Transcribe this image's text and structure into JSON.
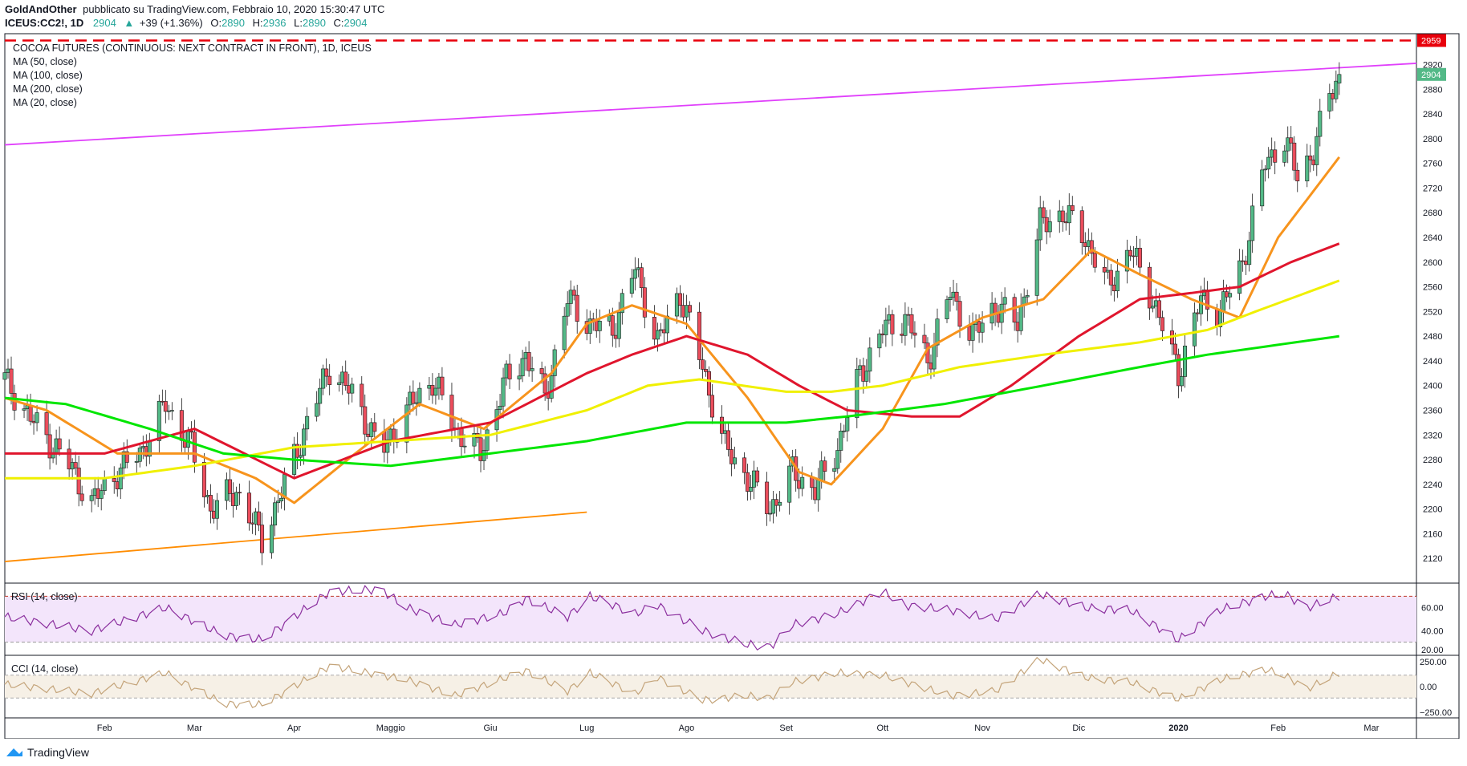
{
  "header": {
    "line1_user": "GoldAndOther",
    "line1_rest": "pubblicato su TradingView.com, Febbraio 10, 2020 15:30:47 UTC",
    "symbol": "ICEUS:CC2!, 1D",
    "last": "2904",
    "change": "+39 (+1.36%)",
    "o_label": "O:",
    "o_val": "2890",
    "h_label": "H:",
    "h_val": "2936",
    "l_label": "L:",
    "l_val": "2890",
    "c_label": "C:",
    "c_val": "2904"
  },
  "legend": {
    "title": "COCOA FUTURES (CONTINUOUS: NEXT CONTRACT IN FRONT), 1D, ICEUS",
    "ma50": "MA (50, close)",
    "ma100": "MA (100, close)",
    "ma200": "MA (200, close)",
    "ma20": "MA (20, close)"
  },
  "rsi_label": "RSI (14, close)",
  "cci_label": "CCI (14, close)",
  "footer_brand": "TradingView",
  "colors": {
    "up": "#53b987",
    "down": "#eb4d5c",
    "ma50": "#e0152d",
    "ma100": "#f0f000",
    "ma200": "#00e600",
    "ma20": "#f7941d",
    "trend_magenta": "#e040fb",
    "trend_orange": "#ff8c00",
    "resistance": "#e8000b",
    "rsi_line": "#8b2f9e",
    "rsi_band": "#f3e5fb",
    "cci_line": "#c4a47a",
    "cci_band": "#f6f0e6"
  },
  "chart_data": {
    "type": "candlestick",
    "x_ticks": [
      "Feb",
      "Mar",
      "Apr",
      "Maggio",
      "Giu",
      "Lug",
      "Ago",
      "Set",
      "Ott",
      "Nov",
      "Dic",
      "2020",
      "Feb",
      "Mar"
    ],
    "price_axis": {
      "ylim": [
        2080,
        2970
      ],
      "ticks": [
        "2920",
        "2880",
        "2840",
        "2800",
        "2760",
        "2720",
        "2680",
        "2640",
        "2600",
        "2560",
        "2520",
        "2480",
        "2440",
        "2400",
        "2360",
        "2320",
        "2280",
        "2240",
        "2200",
        "2160",
        "2120"
      ],
      "labels": [
        {
          "text": "2959",
          "kind": "resistance"
        },
        {
          "text": "2904",
          "kind": "last"
        }
      ]
    },
    "resistance": 2959,
    "trendlines": [
      {
        "name": "magenta",
        "points": [
          [
            "2019-01-01",
            2790
          ],
          [
            "2020-03-15",
            2922
          ]
        ]
      },
      {
        "name": "orange",
        "points": [
          [
            "2019-01-01",
            2115
          ],
          [
            "2019-07-01",
            2195
          ]
        ]
      }
    ],
    "candle_anchors": [
      [
        "2019-01-01",
        2410
      ],
      [
        "2019-01-10",
        2340
      ],
      [
        "2019-01-20",
        2280
      ],
      [
        "2019-01-28",
        2210
      ],
      [
        "2019-02-05",
        2260
      ],
      [
        "2019-02-12",
        2290
      ],
      [
        "2019-02-20",
        2370
      ],
      [
        "2019-02-28",
        2300
      ],
      [
        "2019-03-06",
        2200
      ],
      [
        "2019-03-14",
        2230
      ],
      [
        "2019-03-22",
        2150
      ],
      [
        "2019-03-29",
        2240
      ],
      [
        "2019-04-05",
        2340
      ],
      [
        "2019-04-12",
        2430
      ],
      [
        "2019-04-20",
        2380
      ],
      [
        "2019-04-28",
        2290
      ],
      [
        "2019-05-06",
        2360
      ],
      [
        "2019-05-14",
        2410
      ],
      [
        "2019-05-21",
        2330
      ],
      [
        "2019-05-29",
        2290
      ],
      [
        "2019-06-05",
        2400
      ],
      [
        "2019-06-12",
        2450
      ],
      [
        "2019-06-18",
        2380
      ],
      [
        "2019-06-25",
        2540
      ],
      [
        "2019-07-02",
        2500
      ],
      [
        "2019-07-09",
        2490
      ],
      [
        "2019-07-16",
        2590
      ],
      [
        "2019-07-23",
        2470
      ],
      [
        "2019-07-30",
        2550
      ],
      [
        "2019-08-06",
        2430
      ],
      [
        "2019-08-13",
        2300
      ],
      [
        "2019-08-20",
        2250
      ],
      [
        "2019-08-27",
        2200
      ],
      [
        "2019-09-03",
        2260
      ],
      [
        "2019-09-10",
        2230
      ],
      [
        "2019-09-17",
        2300
      ],
      [
        "2019-09-24",
        2420
      ],
      [
        "2019-10-01",
        2490
      ],
      [
        "2019-10-08",
        2510
      ],
      [
        "2019-10-15",
        2440
      ],
      [
        "2019-10-22",
        2550
      ],
      [
        "2019-10-29",
        2480
      ],
      [
        "2019-11-05",
        2530
      ],
      [
        "2019-11-12",
        2500
      ],
      [
        "2019-11-19",
        2660
      ],
      [
        "2019-11-26",
        2680
      ],
      [
        "2019-12-03",
        2640
      ],
      [
        "2019-12-10",
        2560
      ],
      [
        "2019-12-17",
        2620
      ],
      [
        "2019-12-24",
        2540
      ],
      [
        "2020-01-01",
        2420
      ],
      [
        "2020-01-08",
        2540
      ],
      [
        "2020-01-14",
        2520
      ],
      [
        "2020-01-21",
        2600
      ],
      [
        "2020-01-28",
        2760
      ],
      [
        "2020-02-03",
        2800
      ],
      [
        "2020-02-07",
        2740
      ],
      [
        "2020-02-12",
        2780
      ],
      [
        "2020-02-17",
        2870
      ],
      [
        "2020-02-20",
        2904
      ]
    ],
    "ma_series": [
      {
        "name": "MA (20, close)",
        "points": [
          [
            "2019-01-01",
            2380
          ],
          [
            "2019-01-14",
            2360
          ],
          [
            "2019-02-05",
            2290
          ],
          [
            "2019-03-01",
            2290
          ],
          [
            "2019-03-20",
            2250
          ],
          [
            "2019-04-01",
            2210
          ],
          [
            "2019-04-20",
            2290
          ],
          [
            "2019-05-10",
            2370
          ],
          [
            "2019-05-30",
            2330
          ],
          [
            "2019-06-20",
            2420
          ],
          [
            "2019-07-01",
            2500
          ],
          [
            "2019-07-15",
            2530
          ],
          [
            "2019-08-01",
            2500
          ],
          [
            "2019-08-20",
            2380
          ],
          [
            "2019-09-05",
            2260
          ],
          [
            "2019-09-15",
            2240
          ],
          [
            "2019-10-01",
            2330
          ],
          [
            "2019-10-15",
            2460
          ],
          [
            "2019-11-01",
            2510
          ],
          [
            "2019-11-20",
            2540
          ],
          [
            "2019-12-05",
            2620
          ],
          [
            "2019-12-20",
            2580
          ],
          [
            "2020-01-05",
            2540
          ],
          [
            "2020-01-20",
            2510
          ],
          [
            "2020-02-01",
            2640
          ],
          [
            "2020-02-20",
            2770
          ]
        ]
      },
      {
        "name": "MA (50, close)",
        "points": [
          [
            "2019-01-01",
            2290
          ],
          [
            "2019-02-01",
            2290
          ],
          [
            "2019-03-01",
            2330
          ],
          [
            "2019-04-01",
            2250
          ],
          [
            "2019-05-01",
            2310
          ],
          [
            "2019-06-01",
            2340
          ],
          [
            "2019-07-01",
            2420
          ],
          [
            "2019-07-15",
            2450
          ],
          [
            "2019-08-01",
            2480
          ],
          [
            "2019-08-20",
            2450
          ],
          [
            "2019-09-05",
            2400
          ],
          [
            "2019-09-20",
            2360
          ],
          [
            "2019-10-10",
            2350
          ],
          [
            "2019-10-25",
            2350
          ],
          [
            "2019-11-10",
            2400
          ],
          [
            "2019-12-01",
            2480
          ],
          [
            "2019-12-20",
            2540
          ],
          [
            "2020-01-05",
            2550
          ],
          [
            "2020-01-20",
            2560
          ],
          [
            "2020-02-05",
            2600
          ],
          [
            "2020-02-20",
            2630
          ]
        ]
      },
      {
        "name": "MA (100, close)",
        "points": [
          [
            "2019-01-01",
            2250
          ],
          [
            "2019-02-01",
            2250
          ],
          [
            "2019-03-01",
            2270
          ],
          [
            "2019-04-01",
            2300
          ],
          [
            "2019-05-01",
            2310
          ],
          [
            "2019-06-01",
            2320
          ],
          [
            "2019-07-01",
            2360
          ],
          [
            "2019-07-20",
            2400
          ],
          [
            "2019-08-05",
            2410
          ],
          [
            "2019-09-01",
            2390
          ],
          [
            "2019-09-15",
            2390
          ],
          [
            "2019-10-01",
            2400
          ],
          [
            "2019-10-25",
            2430
          ],
          [
            "2019-11-20",
            2450
          ],
          [
            "2019-12-20",
            2470
          ],
          [
            "2020-01-10",
            2490
          ],
          [
            "2020-01-25",
            2520
          ],
          [
            "2020-02-20",
            2570
          ]
        ]
      },
      {
        "name": "MA (200, close)",
        "points": [
          [
            "2019-01-01",
            2380
          ],
          [
            "2019-01-20",
            2370
          ],
          [
            "2019-02-15",
            2330
          ],
          [
            "2019-03-10",
            2290
          ],
          [
            "2019-04-01",
            2280
          ],
          [
            "2019-05-01",
            2270
          ],
          [
            "2019-06-01",
            2290
          ],
          [
            "2019-07-01",
            2310
          ],
          [
            "2019-08-01",
            2340
          ],
          [
            "2019-08-15",
            2340
          ],
          [
            "2019-09-01",
            2340
          ],
          [
            "2019-09-20",
            2350
          ],
          [
            "2019-10-20",
            2370
          ],
          [
            "2019-11-20",
            2400
          ],
          [
            "2019-12-20",
            2430
          ],
          [
            "2020-01-10",
            2450
          ],
          [
            "2020-02-20",
            2480
          ]
        ]
      }
    ],
    "rsi": {
      "ylim": [
        20,
        80
      ],
      "ticks": [
        "60.00",
        "40.00",
        "20.00"
      ],
      "overbought": 70,
      "oversold": 30,
      "anchors": [
        [
          "2019-01-01",
          52
        ],
        [
          "2019-01-28",
          40
        ],
        [
          "2019-02-20",
          60
        ],
        [
          "2019-03-10",
          36
        ],
        [
          "2019-03-22",
          32
        ],
        [
          "2019-04-12",
          74
        ],
        [
          "2019-04-28",
          76
        ],
        [
          "2019-05-06",
          60
        ],
        [
          "2019-05-21",
          45
        ],
        [
          "2019-06-05",
          55
        ],
        [
          "2019-06-12",
          68
        ],
        [
          "2019-06-25",
          52
        ],
        [
          "2019-07-02",
          70
        ],
        [
          "2019-07-16",
          55
        ],
        [
          "2019-07-23",
          62
        ],
        [
          "2019-08-06",
          40
        ],
        [
          "2019-08-20",
          28
        ],
        [
          "2019-08-27",
          26
        ],
        [
          "2019-09-03",
          45
        ],
        [
          "2019-09-17",
          55
        ],
        [
          "2019-10-01",
          74
        ],
        [
          "2019-10-08",
          62
        ],
        [
          "2019-10-22",
          58
        ],
        [
          "2019-11-05",
          50
        ],
        [
          "2019-11-19",
          72
        ],
        [
          "2019-12-03",
          60
        ],
        [
          "2019-12-17",
          58
        ],
        [
          "2020-01-01",
          32
        ],
        [
          "2020-01-14",
          58
        ],
        [
          "2020-01-28",
          70
        ],
        [
          "2020-02-03",
          72
        ],
        [
          "2020-02-10",
          60
        ],
        [
          "2020-02-20",
          70
        ]
      ]
    },
    "cci": {
      "ylim": [
        -260,
        260
      ],
      "ticks": [
        "250.00",
        "0.00",
        "−250.00"
      ],
      "band": [
        100,
        -100
      ],
      "anchors": [
        [
          "2019-01-01",
          20
        ],
        [
          "2019-01-28",
          -60
        ],
        [
          "2019-02-20",
          120
        ],
        [
          "2019-03-10",
          -150
        ],
        [
          "2019-03-22",
          -160
        ],
        [
          "2019-04-12",
          180
        ],
        [
          "2019-04-28",
          100
        ],
        [
          "2019-05-06",
          60
        ],
        [
          "2019-05-21",
          -80
        ],
        [
          "2019-06-12",
          140
        ],
        [
          "2019-06-25",
          -40
        ],
        [
          "2019-07-02",
          120
        ],
        [
          "2019-07-16",
          -60
        ],
        [
          "2019-07-23",
          80
        ],
        [
          "2019-08-06",
          -120
        ],
        [
          "2019-08-20",
          -80
        ],
        [
          "2019-08-27",
          -100
        ],
        [
          "2019-09-03",
          40
        ],
        [
          "2019-09-17",
          120
        ],
        [
          "2019-10-01",
          100
        ],
        [
          "2019-10-22",
          -80
        ],
        [
          "2019-11-05",
          -40
        ],
        [
          "2019-11-19",
          240
        ],
        [
          "2019-12-03",
          80
        ],
        [
          "2019-12-17",
          40
        ],
        [
          "2020-01-01",
          -110
        ],
        [
          "2020-01-14",
          60
        ],
        [
          "2020-01-28",
          150
        ],
        [
          "2020-02-03",
          100
        ],
        [
          "2020-02-10",
          -20
        ],
        [
          "2020-02-20",
          120
        ]
      ]
    }
  }
}
